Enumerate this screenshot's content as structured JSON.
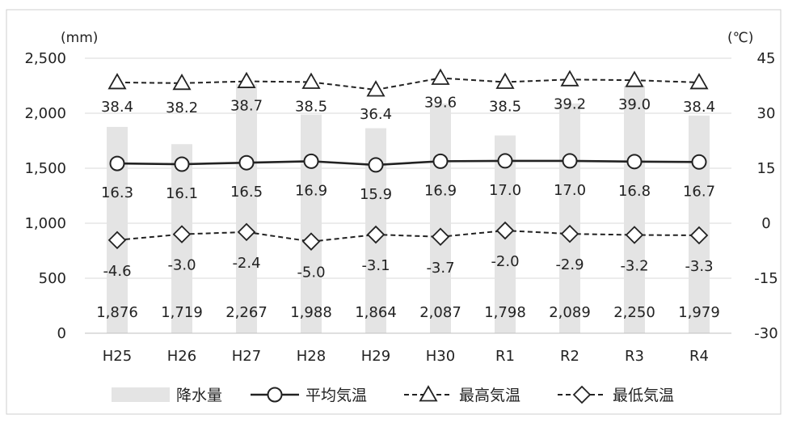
{
  "chart_data": {
    "type": "bar+line",
    "categories": [
      "H25",
      "H26",
      "H27",
      "H28",
      "H29",
      "H30",
      "R1",
      "R2",
      "R3",
      "R4"
    ],
    "left_axis": {
      "unit": "(mm)",
      "ylim": [
        0,
        2500
      ],
      "ticks": [
        0,
        500,
        1000,
        1500,
        2000,
        2500
      ],
      "tick_labels": [
        "0",
        "500",
        "1,000",
        "1,500",
        "2,000",
        "2,500"
      ]
    },
    "right_axis": {
      "unit": "(℃)",
      "ylim": [
        -30,
        45
      ],
      "ticks": [
        -30,
        -15,
        0,
        15,
        30,
        45
      ],
      "tick_labels": [
        "-30",
        "-15",
        "0",
        "15",
        "30",
        "45"
      ]
    },
    "bars": {
      "name": "降水量",
      "axis": "left",
      "color": "#e4e4e4",
      "values": [
        1876,
        1719,
        2267,
        1988,
        1864,
        2087,
        1798,
        2089,
        2250,
        1979
      ],
      "labels": [
        "1,876",
        "1,719",
        "2,267",
        "1,988",
        "1,864",
        "2,087",
        "1,798",
        "2,089",
        "2,250",
        "1,979"
      ]
    },
    "series": [
      {
        "name": "平均気温",
        "axis": "right",
        "line": "solid",
        "marker": "circle",
        "values": [
          16.3,
          16.1,
          16.5,
          16.9,
          15.9,
          16.9,
          17.0,
          17.0,
          16.8,
          16.7
        ],
        "labels": [
          "16.3",
          "16.1",
          "16.5",
          "16.9",
          "15.9",
          "16.9",
          "17.0",
          "17.0",
          "16.8",
          "16.7"
        ]
      },
      {
        "name": "最高気温",
        "axis": "right",
        "line": "dashed",
        "marker": "triangle",
        "values": [
          38.4,
          38.2,
          38.7,
          38.5,
          36.4,
          39.6,
          38.5,
          39.2,
          39.0,
          38.4
        ],
        "labels": [
          "38.4",
          "38.2",
          "38.7",
          "38.5",
          "36.4",
          "39.6",
          "38.5",
          "39.2",
          "39.0",
          "38.4"
        ]
      },
      {
        "name": "最低気温",
        "axis": "right",
        "line": "dashed",
        "marker": "diamond",
        "values": [
          -4.6,
          -3.0,
          -2.4,
          -5.0,
          -3.1,
          -3.7,
          -2.0,
          -2.9,
          -3.2,
          -3.3
        ],
        "labels": [
          "-4.6",
          "-3.0",
          "-2.4",
          "-5.0",
          "-3.1",
          "-3.7",
          "-2.0",
          "-2.9",
          "-3.2",
          "-3.3"
        ]
      }
    ],
    "grid": true,
    "legend": "bottom"
  }
}
